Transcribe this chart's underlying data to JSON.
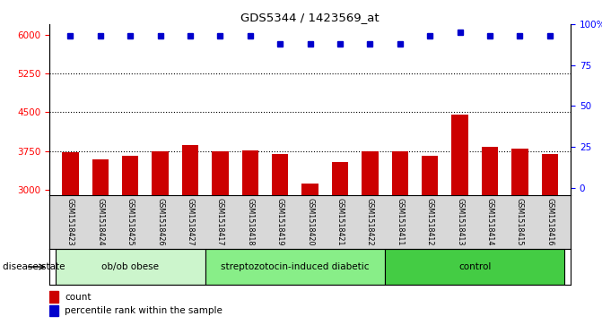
{
  "title": "GDS5344 / 1423569_at",
  "samples": [
    "GSM1518423",
    "GSM1518424",
    "GSM1518425",
    "GSM1518426",
    "GSM1518427",
    "GSM1518417",
    "GSM1518418",
    "GSM1518419",
    "GSM1518420",
    "GSM1518421",
    "GSM1518422",
    "GSM1518411",
    "GSM1518412",
    "GSM1518413",
    "GSM1518414",
    "GSM1518415",
    "GSM1518416"
  ],
  "counts": [
    3720,
    3590,
    3660,
    3740,
    3870,
    3740,
    3770,
    3690,
    3130,
    3540,
    3740,
    3740,
    3650,
    4460,
    3830,
    3800,
    3700
  ],
  "percentile_ranks": [
    93,
    93,
    93,
    93,
    93,
    93,
    93,
    88,
    88,
    88,
    88,
    88,
    93,
    95,
    93,
    93,
    93
  ],
  "groups": [
    {
      "label": "ob/ob obese",
      "start": 0,
      "end": 5,
      "color": "#ccf5cc"
    },
    {
      "label": "streptozotocin-induced diabetic",
      "start": 5,
      "end": 11,
      "color": "#88ee88"
    },
    {
      "label": "control",
      "start": 11,
      "end": 17,
      "color": "#44cc44"
    }
  ],
  "bar_color": "#cc0000",
  "dot_color": "#0000cc",
  "ylim_left": [
    2900,
    6200
  ],
  "ylim_right": [
    -4.55,
    100
  ],
  "yticks_left": [
    3000,
    3750,
    4500,
    5250,
    6000
  ],
  "yticks_right": [
    0,
    25,
    50,
    75,
    100
  ],
  "yticklabels_right": [
    "0",
    "25",
    "50",
    "75",
    "100%"
  ],
  "hlines": [
    3750,
    4500,
    5250
  ],
  "plot_bg_color": "#ffffff",
  "tick_label_area_color": "#d8d8d8",
  "disease_state_label": "disease state",
  "legend_count_label": "count",
  "legend_percentile_label": "percentile rank within the sample"
}
